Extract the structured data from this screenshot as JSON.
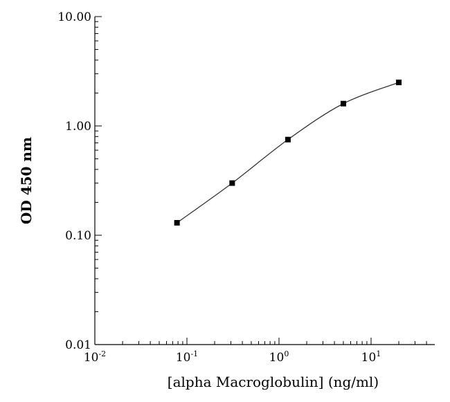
{
  "chart_data": {
    "type": "scatter",
    "title": "",
    "xlabel": "[alpha Macroglobulin] (ng/ml)",
    "ylabel": "OD 450 nm",
    "xscale": "log",
    "yscale": "log",
    "xlim": [
      0.01,
      60
    ],
    "ylim": [
      0.01,
      10
    ],
    "grid": false,
    "legend": "none",
    "x_ticks": [
      {
        "value": 0.01,
        "base": "10",
        "exp": "-2"
      },
      {
        "value": 0.1,
        "base": "10",
        "exp": "-1"
      },
      {
        "value": 1,
        "base": "10",
        "exp": "0"
      },
      {
        "value": 10,
        "base": "10",
        "exp": "1"
      }
    ],
    "y_ticks": [
      {
        "value": 0.01,
        "label": "0.01"
      },
      {
        "value": 0.1,
        "label": "0.10"
      },
      {
        "value": 1,
        "label": "1.00"
      },
      {
        "value": 10,
        "label": "10.00"
      }
    ],
    "series": [
      {
        "x": [
          0.078,
          0.31,
          1.25,
          5.0,
          20.0
        ],
        "y": [
          0.13,
          0.3,
          0.75,
          1.6,
          2.5
        ],
        "marker": "square",
        "line": "smooth"
      }
    ],
    "colors": {
      "marker": "#000000",
      "curve": "#333333",
      "axis": "#000000"
    }
  }
}
